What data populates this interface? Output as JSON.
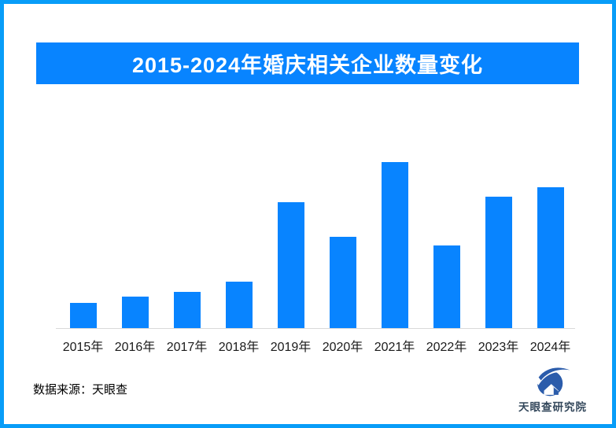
{
  "page": {
    "frame_color": "#089df8",
    "background_color": "#ffffff"
  },
  "header": {
    "title": "2015-2024年婚庆相关企业数量变化",
    "banner_color": "#0884ff",
    "title_color": "#ffffff"
  },
  "chart_data": {
    "type": "bar",
    "title": "2015-2024年婚庆相关企业数量变化",
    "categories": [
      "2015年",
      "2016年",
      "2017年",
      "2018年",
      "2019年",
      "2020年",
      "2021年",
      "2022年",
      "2023年",
      "2024年"
    ],
    "values": [
      15,
      19,
      22,
      28,
      76,
      55,
      100,
      50,
      79,
      85
    ],
    "value_unit": "relative-height-percent-of-2021-peak (chart shows no numeric y-axis or data labels)",
    "xlabel": "",
    "ylabel": "",
    "ylim": [
      0,
      100
    ],
    "grid": false,
    "legend": false,
    "bar_color": "#0884ff",
    "axis_line_color": "#d9d9d9",
    "tick_label_color": "#1a1a1a"
  },
  "footer": {
    "source_label": "数据来源：天眼查",
    "logo_text": "天眼查研究院",
    "logo_mark_color": "#2b5cab",
    "logo_text_color": "#33475b"
  }
}
